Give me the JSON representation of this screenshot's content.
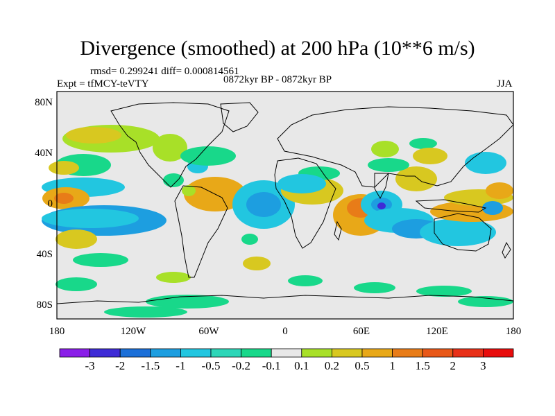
{
  "title": "Divergence (smoothed) at 200 hPa (10**6 m/s)",
  "stats": "rmsd= 0.299241 diff= 0.000814561",
  "experiment": "Expt = tfMCY-teVTY",
  "period": "0872kyr BP - 0872kyr BP",
  "season": "JJA",
  "lat_ticks": [
    "80N",
    "40N",
    "0",
    "40S",
    "80S"
  ],
  "lon_ticks": [
    "180",
    "120W",
    "60W",
    "0",
    "60E",
    "120E",
    "180"
  ],
  "colorbar": {
    "labels": [
      "-3",
      "-2",
      "-1.5",
      "-1",
      "-0.5",
      "-0.2",
      "-0.1",
      "0.1",
      "0.2",
      "0.5",
      "1",
      "1.5",
      "2",
      "3"
    ],
    "colors": [
      "#8a1ee8",
      "#3e2bd6",
      "#1b6fd8",
      "#1d9ee0",
      "#22c6e0",
      "#2dd6b8",
      "#18d88a",
      "#e8e8e8",
      "#a8e028",
      "#d8c820",
      "#e8a818",
      "#e87c18",
      "#e85818",
      "#e83018",
      "#e80c0c"
    ]
  },
  "map": {
    "colors": {
      "sea": "#e8e8e8",
      "neg1": "#18d88a",
      "neg2": "#22c6e0",
      "neg3": "#1d9ee0",
      "neg4": "#3e2bd6",
      "pos1": "#a8e028",
      "pos2": "#d8c820",
      "pos3": "#e8a818",
      "pos4": "#e87c18"
    }
  }
}
